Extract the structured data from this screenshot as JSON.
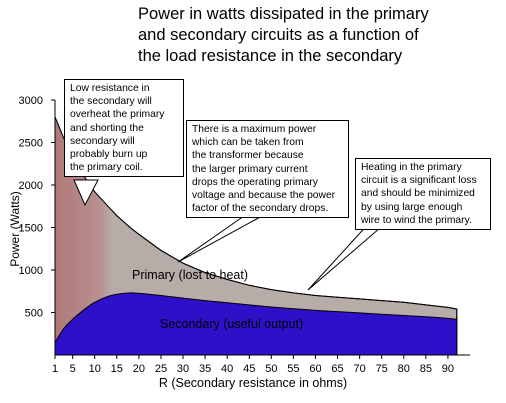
{
  "chart_data": {
    "type": "area",
    "title_lines": [
      "Power in watts dissipated in the primary",
      "and secondary circuits as a function of",
      "the load resistance in the secondary"
    ],
    "xlabel": "R (Secondary resistance in ohms)",
    "ylabel": "Power (Watts)",
    "x_ticks": [
      "1",
      "5",
      "10",
      "15",
      "20",
      "25",
      "30",
      "35",
      "40",
      "45",
      "50",
      "55",
      "60",
      "65",
      "70",
      "75",
      "80",
      "85",
      "90"
    ],
    "y_ticks": [
      "3000",
      "2500",
      "2000",
      "1500",
      "1000",
      "500"
    ],
    "xlim": [
      1,
      95
    ],
    "ylim": [
      0,
      3000
    ],
    "series": [
      {
        "name": "Primary (lost to heat)",
        "color": "#b7aca8",
        "hot_color": "#b07a78",
        "x": [
          1,
          3,
          5,
          8,
          10,
          13,
          15,
          18,
          20,
          25,
          30,
          35,
          40,
          45,
          50,
          55,
          60,
          65,
          70,
          75,
          80,
          85,
          90,
          92
        ],
        "total_y": [
          2800,
          2550,
          2330,
          2070,
          1920,
          1750,
          1640,
          1500,
          1420,
          1230,
          1080,
          970,
          890,
          820,
          770,
          730,
          700,
          680,
          660,
          640,
          620,
          590,
          560,
          540
        ]
      },
      {
        "name": "Secondary (useful output)",
        "color": "#2e10c8",
        "x": [
          1,
          3,
          5,
          8,
          10,
          13,
          15,
          18,
          20,
          25,
          30,
          35,
          40,
          45,
          50,
          55,
          60,
          65,
          70,
          75,
          80,
          85,
          90,
          92
        ],
        "y": [
          150,
          310,
          420,
          550,
          620,
          690,
          715,
          730,
          725,
          700,
          670,
          640,
          615,
          590,
          565,
          545,
          525,
          510,
          495,
          480,
          465,
          450,
          430,
          420
        ]
      }
    ],
    "annotations": [
      {
        "id": "low-resistance",
        "lines": [
          "Low resistance in",
          "the secondary will",
          "overheat the primary",
          "and shorting the",
          "secondary will",
          "probably burn up",
          "the primary coil."
        ]
      },
      {
        "id": "max-power",
        "lines": [
          "There is a maximum power",
          "which can be taken from",
          "the transformer because",
          "the larger primary current",
          "drops the operating primary",
          "voltage and because the power",
          "factor of the secondary drops."
        ]
      },
      {
        "id": "heating",
        "lines": [
          "Heating in the primary",
          "circuit is a significant loss",
          "and should be minimized",
          "by using large enough",
          "wire to wind the primary."
        ]
      }
    ]
  }
}
